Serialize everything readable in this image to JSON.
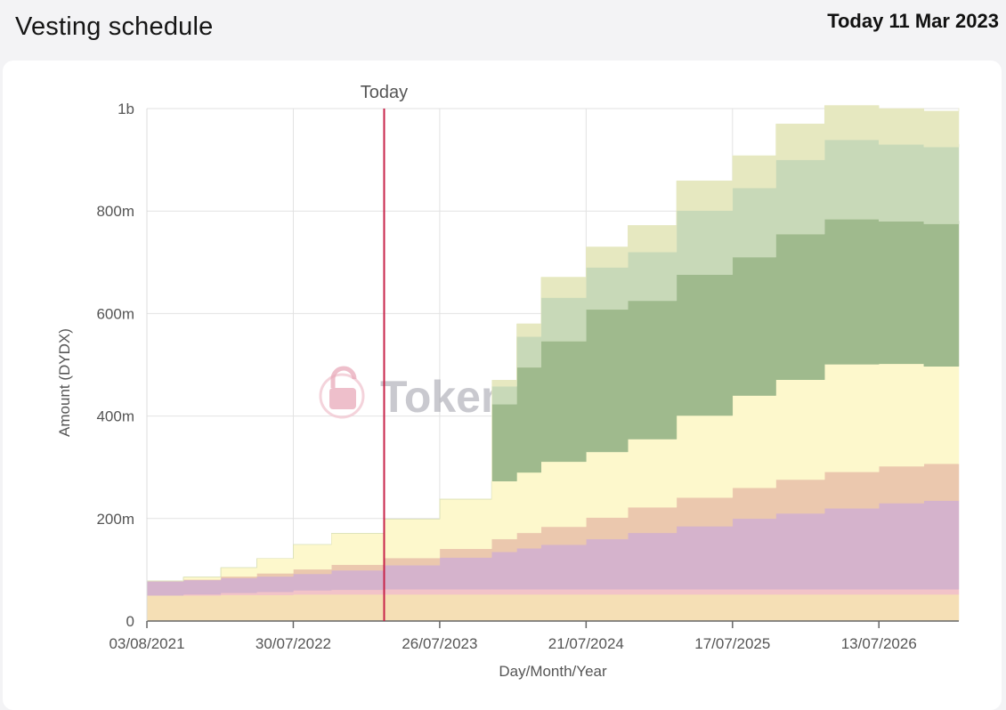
{
  "header": {
    "title": "Vesting schedule",
    "today_text": "Today 11 Mar 2023"
  },
  "watermark": {
    "text": "TokenUnlocks."
  },
  "chart_data": {
    "type": "area",
    "stacked": true,
    "xlabel": "Day/Month/Year",
    "ylabel": "Amount (DYDX)",
    "x_ticks": [
      "03/08/2021",
      "30/07/2022",
      "26/07/2023",
      "21/07/2024",
      "17/07/2025",
      "13/07/2026"
    ],
    "y_ticks": [
      "0",
      "200m",
      "400m",
      "600m",
      "800m",
      "1b"
    ],
    "y_tick_values": [
      0,
      200,
      400,
      600,
      800,
      1000
    ],
    "ylim": [
      0,
      1000
    ],
    "x": [
      "2021-08-03",
      "2021-11-01",
      "2022-02-01",
      "2022-05-01",
      "2022-07-30",
      "2022-11-01",
      "2023-03-11",
      "2023-07-26",
      "2023-12-01",
      "2023-12-02",
      "2024-02-01",
      "2024-04-01",
      "2024-07-21",
      "2024-11-01",
      "2025-03-01",
      "2025-07-17",
      "2025-11-01",
      "2026-03-01",
      "2026-07-13",
      "2026-11-01",
      "2027-01-26"
    ],
    "grid": true,
    "today": {
      "label": "Today",
      "x": "2023-03-11",
      "color": "#c8244a"
    },
    "series": [
      {
        "color": "#f5dfb5",
        "values": [
          50,
          50,
          51,
          51,
          52,
          52,
          52,
          52,
          52,
          52,
          52,
          52,
          52,
          52,
          52,
          52,
          52,
          52,
          52,
          52,
          52
        ]
      },
      {
        "color": "#f2c3c8",
        "values": [
          0,
          2,
          4,
          6,
          8,
          9,
          10,
          10,
          10,
          10,
          10,
          10,
          10,
          10,
          10,
          10,
          10,
          10,
          10,
          10,
          10
        ]
      },
      {
        "color": "#d5b3cc",
        "values": [
          28,
          28,
          29,
          30,
          32,
          38,
          47,
          62,
          73,
          73,
          80,
          87,
          98,
          110,
          123,
          138,
          148,
          158,
          168,
          173,
          172
        ]
      },
      {
        "color": "#ebc8ae",
        "values": [
          0,
          1,
          3,
          6,
          9,
          11,
          14,
          17,
          25,
          25,
          30,
          35,
          42,
          50,
          56,
          60,
          66,
          71,
          72,
          72,
          72
        ]
      },
      {
        "color": "#fdf8cc",
        "values": [
          0,
          5,
          17,
          29,
          48,
          61,
          76,
          97,
          113,
          113,
          118,
          127,
          128,
          133,
          160,
          180,
          195,
          210,
          200,
          190,
          197
        ]
      },
      {
        "color": "#9fba8d",
        "values": [
          0,
          0,
          0,
          0,
          0,
          0,
          0,
          0,
          0,
          150,
          205,
          235,
          278,
          270,
          275,
          270,
          284,
          283,
          278,
          278,
          278
        ]
      },
      {
        "color": "#c8d9b8",
        "values": [
          0,
          0,
          0,
          0,
          0,
          0,
          0,
          0,
          0,
          35,
          60,
          85,
          82,
          95,
          125,
          135,
          145,
          155,
          150,
          150,
          150
        ]
      },
      {
        "color": "#e6e8c0",
        "values": [
          0,
          0,
          0,
          0,
          0,
          0,
          0,
          0,
          0,
          12,
          25,
          40,
          40,
          52,
          58,
          63,
          70,
          67,
          70,
          70,
          70
        ]
      }
    ]
  }
}
